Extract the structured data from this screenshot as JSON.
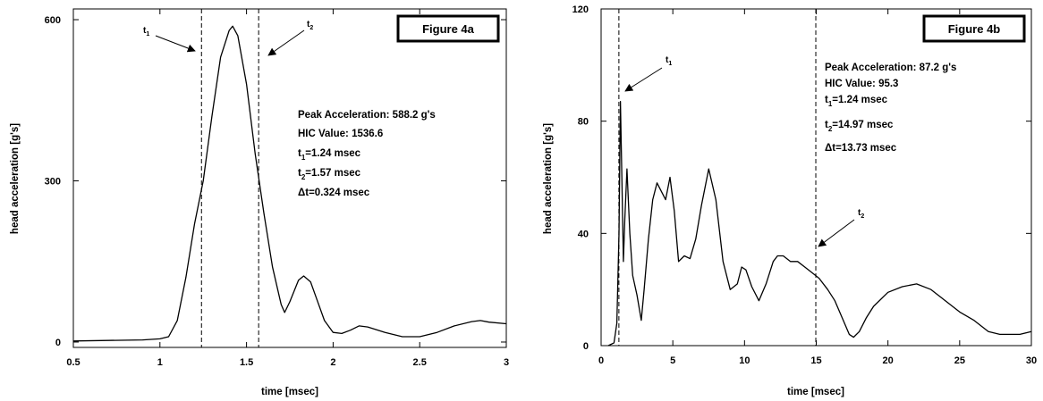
{
  "chart_data": [
    {
      "type": "line",
      "figure_label": "Figure 4a",
      "xlabel": "time [msec]",
      "ylabel": "head acceleration [g's]",
      "xlim": [
        0.5,
        3
      ],
      "ylim": [
        -10,
        620
      ],
      "xticks": [
        0.5,
        1,
        1.5,
        2,
        2.5,
        3
      ],
      "xtick_labels": [
        "0.5",
        "1",
        "1.5",
        "2",
        "2.5",
        "3"
      ],
      "yticks": [
        0,
        300,
        600
      ],
      "ytick_labels": [
        "0",
        "300",
        "600"
      ],
      "grid": false,
      "series": [
        {
          "x": [
            0.5,
            0.7,
            0.9,
            1.0,
            1.05,
            1.1,
            1.15,
            1.2,
            1.25,
            1.3,
            1.35,
            1.4,
            1.42,
            1.45,
            1.5,
            1.55,
            1.6,
            1.65,
            1.7,
            1.72,
            1.75,
            1.8,
            1.83,
            1.87,
            1.9,
            1.95,
            2.0,
            2.05,
            2.1,
            2.15,
            2.2,
            2.3,
            2.4,
            2.5,
            2.6,
            2.7,
            2.8,
            2.85,
            2.9,
            3.0
          ],
          "y": [
            2,
            3,
            4,
            6,
            10,
            40,
            120,
            220,
            300,
            420,
            530,
            580,
            588,
            570,
            480,
            350,
            240,
            140,
            70,
            55,
            75,
            115,
            123,
            112,
            85,
            40,
            18,
            16,
            22,
            30,
            28,
            18,
            10,
            10,
            18,
            30,
            38,
            40,
            37,
            34
          ]
        }
      ],
      "markers": [
        {
          "symbol": "t",
          "index": "1",
          "x": 1.24
        },
        {
          "symbol": "t",
          "index": "2",
          "x": 1.57
        }
      ],
      "annotations": {
        "peak": "Peak Acceleration: 588.2 g's",
        "hic": "HIC Value: 1536.6",
        "t1_sym": "t",
        "t1_sub": "1",
        "t1_val": "=1.24 msec",
        "t2_sym": "t",
        "t2_sub": "2",
        "t2_val": "=1.57 msec",
        "dt_sym": "Δ",
        "dt_val": "t=0.324 msec"
      }
    },
    {
      "type": "line",
      "figure_label": "Figure 4b",
      "xlabel": "time [msec]",
      "ylabel": "head acceleration [g's]",
      "xlim": [
        0,
        30
      ],
      "ylim": [
        0,
        120
      ],
      "xticks": [
        0,
        5,
        10,
        15,
        20,
        25,
        30
      ],
      "xtick_labels": [
        "0",
        "5",
        "10",
        "15",
        "20",
        "25",
        "30"
      ],
      "yticks": [
        0,
        40,
        80,
        120
      ],
      "ytick_labels": [
        "0",
        "40",
        "80",
        "120"
      ],
      "grid": false,
      "series": [
        {
          "x": [
            0.5,
            0.9,
            1.1,
            1.25,
            1.35,
            1.45,
            1.55,
            1.65,
            1.8,
            2.0,
            2.2,
            2.5,
            2.8,
            3.0,
            3.3,
            3.6,
            3.9,
            4.2,
            4.5,
            4.8,
            5.1,
            5.4,
            5.8,
            6.2,
            6.6,
            7.0,
            7.5,
            8.0,
            8.5,
            9.0,
            9.5,
            9.8,
            10.1,
            10.5,
            11.0,
            11.5,
            12.0,
            12.3,
            12.7,
            13.2,
            13.7,
            14.2,
            14.7,
            15.2,
            15.8,
            16.3,
            16.8,
            17.3,
            17.6,
            18.0,
            18.5,
            19.0,
            20.0,
            21.0,
            22.0,
            23.0,
            24.0,
            25.0,
            26.0,
            27.0,
            27.8,
            28.5,
            29.2,
            30.0
          ],
          "y": [
            0,
            1,
            8,
            40,
            87,
            60,
            30,
            45,
            63,
            40,
            25,
            18,
            9,
            20,
            38,
            52,
            58,
            55,
            52,
            60,
            48,
            30,
            32,
            31,
            38,
            50,
            63,
            52,
            30,
            20,
            22,
            28,
            27,
            21,
            16,
            22,
            30,
            32,
            32,
            30,
            30,
            28,
            26,
            24,
            20,
            16,
            10,
            4,
            3,
            5,
            10,
            14,
            19,
            21,
            22,
            20,
            16,
            12,
            9,
            5,
            4,
            4,
            4,
            5
          ]
        }
      ],
      "markers": [
        {
          "symbol": "t",
          "index": "1",
          "x": 1.24
        },
        {
          "symbol": "t",
          "index": "2",
          "x": 14.97
        }
      ],
      "annotations": {
        "peak": "Peak Acceleration: 87.2 g's",
        "hic": "HIC Value: 95.3",
        "t1_sym": "t",
        "t1_sub": "1",
        "t1_val": "=1.24 msec",
        "t2_sym": "t",
        "t2_sub": "2",
        "t2_val": "=14.97 msec",
        "dt_sym": "Δ",
        "dt_val": "t=13.73 msec"
      }
    }
  ]
}
